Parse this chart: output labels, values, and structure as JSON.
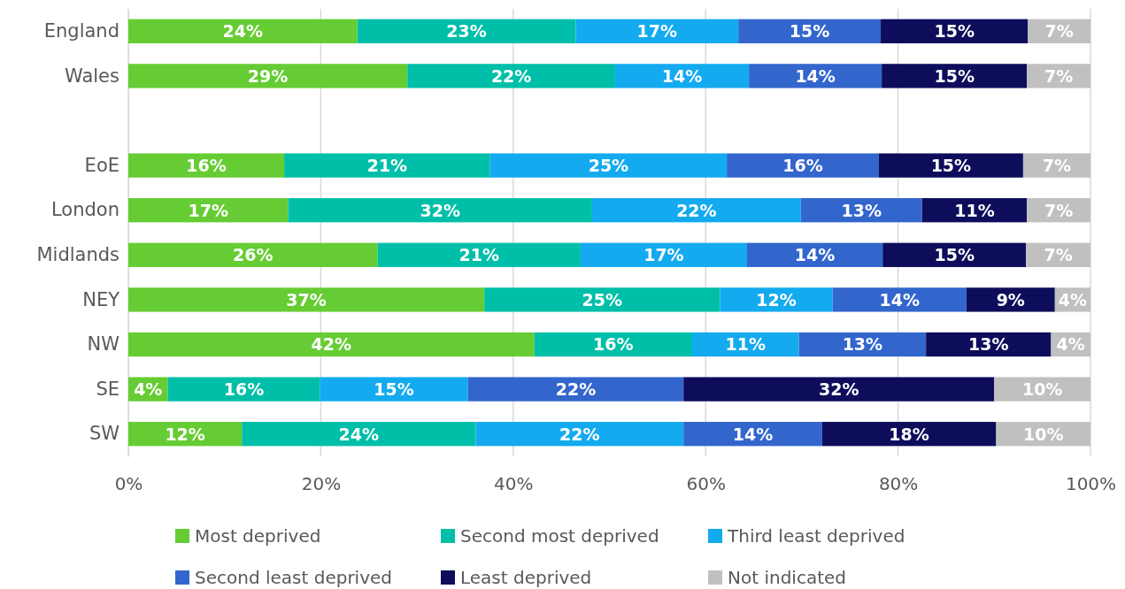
{
  "chart_data": {
    "type": "bar",
    "orientation": "horizontal",
    "stacked": true,
    "categories": [
      "England",
      "Wales",
      null,
      "EoE",
      "London",
      "Midlands",
      "NEY",
      "NW",
      "SE",
      "SW"
    ],
    "xlim": [
      0,
      100
    ],
    "xticks": [
      {
        "value": 0,
        "label": "0%"
      },
      {
        "value": 20,
        "label": "20%"
      },
      {
        "value": 40,
        "label": "40%"
      },
      {
        "value": 60,
        "label": "60%"
      },
      {
        "value": 80,
        "label": "80%"
      },
      {
        "value": 100,
        "label": "100%"
      }
    ],
    "grid": "x",
    "legend": "bottom",
    "series": [
      {
        "name": "Most deprived",
        "color": "#66cc33",
        "values": [
          23.8,
          29.0,
          null,
          16.2,
          16.6,
          25.9,
          37.0,
          42.2,
          4.1,
          11.8
        ],
        "value_labels": [
          "24%",
          "29%",
          null,
          "16%",
          "17%",
          "26%",
          "37%",
          "42%",
          "4%",
          "12%"
        ]
      },
      {
        "name": "Second most deprived",
        "color": "#00bfa8",
        "values": [
          22.7,
          21.6,
          null,
          21.4,
          31.6,
          21.1,
          24.5,
          16.4,
          15.8,
          24.3
        ],
        "value_labels": [
          "23%",
          "22%",
          null,
          "21%",
          "32%",
          "21%",
          "25%",
          "16%",
          "16%",
          "24%"
        ]
      },
      {
        "name": "Third least deprived",
        "color": "#14aaf0",
        "values": [
          16.9,
          13.9,
          null,
          24.6,
          21.7,
          17.3,
          11.7,
          11.1,
          15.4,
          21.6
        ],
        "value_labels": [
          "17%",
          "14%",
          null,
          "25%",
          "22%",
          "17%",
          "12%",
          "11%",
          "15%",
          "22%"
        ]
      },
      {
        "name": "Second least deprived",
        "color": "#3366cc",
        "values": [
          14.8,
          13.8,
          null,
          15.8,
          12.6,
          14.1,
          13.9,
          13.2,
          22.4,
          14.4
        ],
        "value_labels": [
          "15%",
          "14%",
          null,
          "16%",
          "13%",
          "14%",
          "14%",
          "13%",
          "22%",
          "14%"
        ]
      },
      {
        "name": "Least deprived",
        "color": "#0d0d5c",
        "values": [
          15.3,
          15.1,
          null,
          15.0,
          10.9,
          14.9,
          9.2,
          13.0,
          32.3,
          18.1
        ],
        "value_labels": [
          "15%",
          "15%",
          null,
          "15%",
          "11%",
          "15%",
          "9%",
          "13%",
          "32%",
          "18%"
        ]
      },
      {
        "name": "Not indicated",
        "color": "#c0c0c0",
        "values": [
          6.5,
          6.6,
          null,
          7.0,
          6.6,
          6.7,
          3.7,
          4.1,
          10.0,
          9.8
        ],
        "value_labels": [
          "7%",
          "7%",
          null,
          "7%",
          "7%",
          "7%",
          "4%",
          "4%",
          "10%",
          "10%"
        ]
      }
    ]
  }
}
